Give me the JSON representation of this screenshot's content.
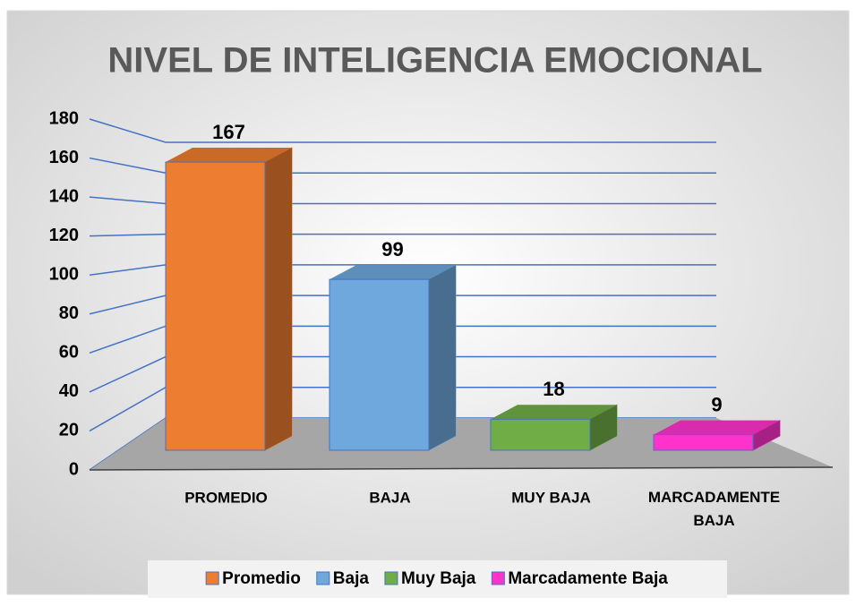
{
  "chart_data": {
    "type": "bar3d",
    "title": "NIVEL DE INTELIGENCIA EMOCIONAL",
    "categories": [
      "PROMEDIO",
      "BAJA",
      "MUY BAJA",
      "MARCADAMENTE BAJA"
    ],
    "values": [
      167,
      99,
      18,
      9
    ],
    "colors": [
      "#ed7d31",
      "#6fa8dc",
      "#70ad47",
      "#ff33cc"
    ],
    "legend": [
      "Promedio",
      "Baja",
      "Muy Baja",
      "Marcadamente Baja"
    ],
    "ylim": [
      0,
      180
    ],
    "yticks": [
      0,
      20,
      40,
      60,
      80,
      100,
      120,
      140,
      160,
      180
    ],
    "grid": true
  }
}
